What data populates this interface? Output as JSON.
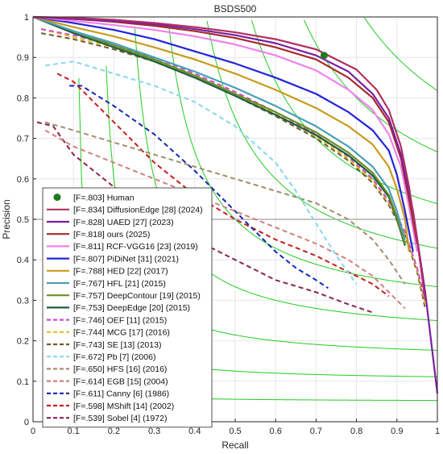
{
  "chart_data": {
    "type": "line",
    "title": "BSDS500",
    "xlabel": "Recall",
    "ylabel": "Precision",
    "xlim": [
      0,
      1
    ],
    "ylim": [
      0,
      1
    ],
    "x_ticks": [
      "0",
      "0.1",
      "0.2",
      "0.3",
      "0.4",
      "0.5",
      "0.6",
      "0.7",
      "0.8",
      "0.9",
      "1"
    ],
    "y_ticks": [
      "0",
      "0.1",
      "0.2",
      "0.3",
      "0.4",
      "0.5",
      "0.6",
      "0.7",
      "0.8",
      "0.9",
      "1"
    ],
    "grid": true,
    "legend_position": "bottom-left",
    "reference_line_y": 0.5,
    "iso_f_contours": [
      0.1,
      0.2,
      0.3,
      0.4,
      0.5,
      0.6,
      0.7,
      0.8,
      0.9
    ],
    "colors": {
      "iso_f": "#22cc22",
      "reference": "#b0b0b0",
      "human": "#1f7a1f"
    },
    "human": {
      "label": "[F=.803] Human",
      "x": 0.72,
      "y": 0.905
    },
    "series": [
      {
        "name": "[F=.834] DiffusionEdge [28] (2024)",
        "color": "#b03060",
        "dash": "solid",
        "x": [
          0,
          0.1,
          0.2,
          0.3,
          0.4,
          0.5,
          0.6,
          0.7,
          0.8,
          0.85,
          0.88,
          0.91,
          0.93,
          0.95,
          0.97
        ],
        "y": [
          1,
          0.998,
          0.993,
          0.985,
          0.975,
          0.962,
          0.945,
          0.92,
          0.87,
          0.82,
          0.77,
          0.68,
          0.58,
          0.45,
          0.3
        ]
      },
      {
        "name": "[F=.828] UAED [27] (2023)",
        "color": "#7a1fa2",
        "dash": "solid",
        "x": [
          0,
          0.1,
          0.2,
          0.3,
          0.4,
          0.5,
          0.6,
          0.7,
          0.78,
          0.84,
          0.88,
          0.91,
          0.94,
          0.97,
          1.0
        ],
        "y": [
          1,
          0.995,
          0.99,
          0.982,
          0.97,
          0.955,
          0.935,
          0.905,
          0.865,
          0.81,
          0.75,
          0.66,
          0.52,
          0.32,
          0.07
        ]
      },
      {
        "name": "[F=.818] ours (2025)",
        "color": "#a52a2a",
        "dash": "solid",
        "x": [
          0,
          0.1,
          0.2,
          0.3,
          0.4,
          0.5,
          0.6,
          0.7,
          0.78,
          0.84,
          0.88,
          0.91,
          0.93,
          0.95
        ],
        "y": [
          1,
          0.995,
          0.988,
          0.978,
          0.965,
          0.948,
          0.925,
          0.895,
          0.85,
          0.8,
          0.74,
          0.65,
          0.55,
          0.44
        ]
      },
      {
        "name": "[F=.811] RCF-VGG16 [23] (2019)",
        "color": "#ee82ee",
        "dash": "solid",
        "x": [
          0,
          0.1,
          0.2,
          0.3,
          0.4,
          0.5,
          0.6,
          0.7,
          0.78,
          0.84,
          0.88,
          0.91,
          0.93,
          0.95
        ],
        "y": [
          1,
          0.99,
          0.98,
          0.968,
          0.952,
          0.932,
          0.905,
          0.868,
          0.82,
          0.77,
          0.71,
          0.63,
          0.53,
          0.42
        ]
      },
      {
        "name": "[F=.807] PiDiNet [31] (2021)",
        "color": "#2424d8",
        "dash": "solid",
        "x": [
          0,
          0.1,
          0.2,
          0.3,
          0.4,
          0.5,
          0.6,
          0.7,
          0.78,
          0.84,
          0.88,
          0.9,
          0.92,
          0.94
        ],
        "y": [
          1,
          0.985,
          0.968,
          0.945,
          0.915,
          0.885,
          0.85,
          0.81,
          0.765,
          0.72,
          0.67,
          0.61,
          0.52,
          0.42
        ]
      },
      {
        "name": "[F=.788] HED [22] (2017)",
        "color": "#c89b1a",
        "dash": "solid",
        "x": [
          0,
          0.1,
          0.2,
          0.3,
          0.4,
          0.5,
          0.6,
          0.7,
          0.78,
          0.84,
          0.88,
          0.9,
          0.92,
          0.93
        ],
        "y": [
          1,
          0.975,
          0.952,
          0.925,
          0.895,
          0.86,
          0.82,
          0.775,
          0.73,
          0.685,
          0.63,
          0.575,
          0.5,
          0.42
        ]
      },
      {
        "name": "[F=.767] HFL [21] (2015)",
        "color": "#4aa0b8",
        "dash": "solid",
        "x": [
          0,
          0.1,
          0.2,
          0.3,
          0.4,
          0.5,
          0.6,
          0.7,
          0.78,
          0.84,
          0.88,
          0.9,
          0.92
        ],
        "y": [
          1,
          0.965,
          0.935,
          0.9,
          0.865,
          0.825,
          0.78,
          0.73,
          0.68,
          0.63,
          0.575,
          0.52,
          0.45
        ]
      },
      {
        "name": "[F=.757] DeepContour [19] (2015)",
        "color": "#6b8e23",
        "dash": "solid",
        "x": [
          0,
          0.1,
          0.2,
          0.3,
          0.4,
          0.5,
          0.6,
          0.7,
          0.78,
          0.84,
          0.88,
          0.9,
          0.92
        ],
        "y": [
          1,
          0.965,
          0.93,
          0.895,
          0.855,
          0.81,
          0.765,
          0.715,
          0.665,
          0.615,
          0.56,
          0.505,
          0.44
        ]
      },
      {
        "name": "[F=.753] DeepEdge [20] (2015)",
        "color": "#1e5e3e",
        "dash": "solid",
        "x": [
          0,
          0.1,
          0.2,
          0.3,
          0.4,
          0.5,
          0.6,
          0.7,
          0.78,
          0.84,
          0.88,
          0.9,
          0.92
        ],
        "y": [
          1,
          0.96,
          0.925,
          0.89,
          0.85,
          0.805,
          0.758,
          0.708,
          0.658,
          0.608,
          0.555,
          0.5,
          0.435
        ]
      },
      {
        "name": "[F=.746] OEF [11] (2015)",
        "color": "#d24ad2",
        "dash": "dashed",
        "x": [
          0.02,
          0.1,
          0.2,
          0.3,
          0.4,
          0.5,
          0.6,
          0.7,
          0.78,
          0.84,
          0.88,
          0.92,
          0.95,
          0.97
        ],
        "y": [
          0.97,
          0.955,
          0.93,
          0.9,
          0.86,
          0.815,
          0.765,
          0.71,
          0.655,
          0.6,
          0.545,
          0.47,
          0.38,
          0.3
        ]
      },
      {
        "name": "[F=.744] MCG [17] (2016)",
        "color": "#e0c020",
        "dash": "dashed",
        "x": [
          0.02,
          0.1,
          0.2,
          0.3,
          0.4,
          0.5,
          0.6,
          0.7,
          0.78,
          0.84,
          0.88,
          0.92,
          0.95,
          0.97
        ],
        "y": [
          0.97,
          0.95,
          0.925,
          0.895,
          0.855,
          0.81,
          0.76,
          0.705,
          0.65,
          0.595,
          0.54,
          0.465,
          0.375,
          0.29
        ]
      },
      {
        "name": "[F=.743] SE [13] (2013)",
        "color": "#6e5a2e",
        "dash": "dashed",
        "x": [
          0.02,
          0.1,
          0.2,
          0.3,
          0.4,
          0.5,
          0.6,
          0.7,
          0.78,
          0.84,
          0.88,
          0.92,
          0.95,
          0.97
        ],
        "y": [
          0.96,
          0.945,
          0.92,
          0.89,
          0.85,
          0.805,
          0.755,
          0.7,
          0.645,
          0.59,
          0.535,
          0.46,
          0.37,
          0.28
        ]
      },
      {
        "name": "[F=.672] Pb [7] (2006)",
        "color": "#88d8f0",
        "dash": "dashed",
        "x": [
          0.03,
          0.1,
          0.2,
          0.3,
          0.4,
          0.5,
          0.6,
          0.65,
          0.7,
          0.75,
          0.8
        ],
        "y": [
          0.88,
          0.89,
          0.86,
          0.83,
          0.79,
          0.73,
          0.64,
          0.57,
          0.49,
          0.41,
          0.34
        ]
      },
      {
        "name": "[F=.650] HFS [16] (2016)",
        "color": "#a09070",
        "dash": "dashed",
        "x": [
          0.03,
          0.1,
          0.2,
          0.3,
          0.4,
          0.5,
          0.6,
          0.7,
          0.78,
          0.84,
          0.88,
          0.92
        ],
        "y": [
          0.74,
          0.72,
          0.69,
          0.66,
          0.63,
          0.6,
          0.57,
          0.54,
          0.5,
          0.45,
          0.4,
          0.34
        ]
      },
      {
        "name": "[F=.614] EGB [15] (2004)",
        "color": "#d08080",
        "dash": "dashed",
        "x": [
          0.03,
          0.1,
          0.2,
          0.3,
          0.4,
          0.5,
          0.6,
          0.7,
          0.78,
          0.84,
          0.88,
          0.92
        ],
        "y": [
          0.72,
          0.68,
          0.64,
          0.6,
          0.56,
          0.52,
          0.48,
          0.44,
          0.4,
          0.36,
          0.32,
          0.28
        ]
      },
      {
        "name": "[F=.611] Canny [6] (1986)",
        "color": "#1428b4",
        "dash": "dashed",
        "x": [
          0.09,
          0.12,
          0.2,
          0.3,
          0.4,
          0.5,
          0.55,
          0.6,
          0.65,
          0.7,
          0.73
        ],
        "y": [
          0.83,
          0.83,
          0.78,
          0.71,
          0.62,
          0.52,
          0.47,
          0.42,
          0.38,
          0.35,
          0.33
        ]
      },
      {
        "name": "[F=.598] MShift [14] (2002)",
        "color": "#c81e1e",
        "dash": "dashed",
        "x": [
          0.06,
          0.1,
          0.2,
          0.3,
          0.4,
          0.5,
          0.6,
          0.7,
          0.78,
          0.84,
          0.88
        ],
        "y": [
          0.86,
          0.84,
          0.74,
          0.64,
          0.56,
          0.5,
          0.45,
          0.41,
          0.37,
          0.34,
          0.31
        ]
      },
      {
        "name": "[F=.539] Sobel [4] (1972)",
        "color": "#8b2252",
        "dash": "dashed",
        "x": [
          0.01,
          0.05,
          0.1,
          0.2,
          0.3,
          0.4,
          0.5,
          0.6,
          0.7,
          0.78,
          0.84
        ],
        "y": [
          0.74,
          0.73,
          0.66,
          0.58,
          0.51,
          0.45,
          0.4,
          0.35,
          0.32,
          0.29,
          0.27
        ]
      }
    ]
  }
}
